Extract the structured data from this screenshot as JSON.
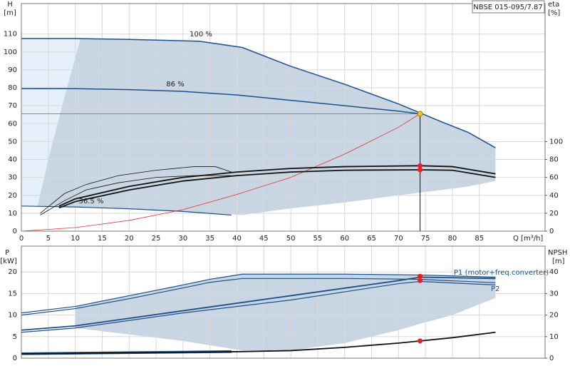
{
  "chart_data": [
    {
      "type": "line",
      "title": "NBSE 015-095/7.87",
      "y_label": [
        "H",
        "[m]"
      ],
      "y2_label": [
        "eta",
        "[%]"
      ],
      "x_label": "Q [m³/h]",
      "xlim": [
        0,
        97.2
      ],
      "xticks": [
        0,
        5,
        10,
        15,
        20,
        25,
        30,
        35,
        40,
        45,
        50,
        55,
        60,
        65,
        70,
        75,
        80,
        85
      ],
      "ylim": [
        0,
        127
      ],
      "yticks": [
        0,
        10,
        20,
        30,
        40,
        50,
        60,
        70,
        80,
        90,
        100,
        110
      ],
      "y2lim": [
        0,
        254
      ],
      "y2ticks": [
        0,
        20,
        40,
        60,
        80,
        100
      ],
      "grid": true,
      "areas": [
        {
          "color": "#e6f0fa",
          "x": [
            0,
            3,
            5,
            8,
            11
          ],
          "upper": [
            107.5,
            107.5,
            107.5,
            107.5,
            107.5
          ],
          "lower": [
            14,
            14,
            40,
            75,
            107.5
          ]
        },
        {
          "color": "#c8d5e2",
          "x": [
            3,
            5,
            8,
            11,
            20,
            33,
            41,
            50,
            60,
            70,
            74,
            78,
            83,
            88
          ],
          "upper": [
            14,
            40,
            75,
            107.5,
            107,
            106,
            102.5,
            92,
            82,
            71,
            66,
            61,
            55,
            46.5
          ],
          "lower": [
            13.8,
            13.7,
            13.5,
            13.4,
            12.5,
            10.5,
            9,
            12.7,
            16,
            20,
            21.5,
            23,
            25,
            28
          ]
        }
      ],
      "series": [
        {
          "name": "100 %",
          "color": "#1d4f8a",
          "width": 1.5,
          "x": [
            0,
            10,
            20,
            33,
            41,
            50,
            60,
            70,
            74,
            78,
            83,
            88
          ],
          "values": [
            107.5,
            107.5,
            107,
            106,
            102.5,
            92,
            82,
            71,
            66,
            61,
            55,
            46.5
          ]
        },
        {
          "name": "86 %",
          "color": "#1d4f8a",
          "width": 1.5,
          "x": [
            0,
            10,
            20,
            30,
            40,
            50,
            60,
            70,
            74
          ],
          "values": [
            79.5,
            79.5,
            79,
            78,
            76,
            73,
            70,
            67,
            65.5
          ]
        },
        {
          "name": "36.5 %",
          "color": "#1d4f8a",
          "width": 1.2,
          "x": [
            0,
            10,
            20,
            30,
            39
          ],
          "values": [
            14,
            13.5,
            12.5,
            11,
            9
          ]
        },
        {
          "color": "#e83030",
          "width": 0.8,
          "x": [
            0,
            10,
            20,
            30,
            40,
            50,
            60,
            70,
            74
          ],
          "values": [
            0,
            2,
            6,
            12,
            20.5,
            30,
            43,
            58,
            65.5
          ]
        },
        {
          "color": "#111111",
          "width": 1.8,
          "axis": "y2",
          "x": [
            7,
            10,
            20,
            30,
            40,
            50,
            60,
            74,
            80,
            88
          ],
          "values": [
            28,
            36,
            50,
            60,
            66,
            70,
            72,
            73,
            72,
            64
          ]
        },
        {
          "color": "#111111",
          "width": 1.8,
          "axis": "y2",
          "x": [
            7,
            10,
            20,
            30,
            40,
            50,
            60,
            74,
            80,
            88
          ],
          "values": [
            26,
            33,
            46,
            56,
            62,
            66,
            68,
            68.5,
            68,
            60
          ]
        },
        {
          "color": "#111111",
          "width": 0.8,
          "axis": "y2",
          "x": [
            3.5,
            8,
            12,
            18,
            25,
            32,
            36,
            39
          ],
          "values": [
            20,
            42,
            52,
            62,
            68,
            72,
            72,
            66
          ]
        },
        {
          "color": "#111111",
          "width": 0.8,
          "axis": "y2",
          "x": [
            3.5,
            8,
            12,
            18,
            25,
            32,
            36,
            39
          ],
          "values": [
            18,
            34,
            46,
            54,
            60,
            62,
            62,
            62
          ]
        }
      ],
      "duty_point": {
        "x": 74,
        "y": 65.5
      },
      "points": [
        {
          "x": 74,
          "y": 65.5,
          "color": "#f5c518"
        },
        {
          "x": 74,
          "y": 73,
          "axis": "y2",
          "color": "#e82020"
        },
        {
          "x": 74,
          "y": 68.5,
          "axis": "y2",
          "color": "#e82020"
        }
      ]
    },
    {
      "type": "line",
      "y_label": [
        "P",
        "[kW]"
      ],
      "y2_label": [
        "NPSH",
        "[m]"
      ],
      "xlim": [
        0,
        97.2
      ],
      "xticks": [
        0,
        5,
        10,
        15,
        20,
        25,
        30,
        35,
        40,
        45,
        50,
        55,
        60,
        65,
        70,
        75,
        80,
        85
      ],
      "ylim": [
        0,
        26
      ],
      "yticks": [
        0,
        5,
        10,
        15,
        20
      ],
      "y2lim": [
        0,
        52
      ],
      "y2ticks": [
        0,
        10,
        20,
        30,
        40
      ],
      "grid": true,
      "areas": [
        {
          "color": "#c8d5e2",
          "x": [
            10,
            20,
            30,
            41,
            50,
            60,
            70,
            74,
            80,
            88
          ],
          "upper": [
            12,
            14.5,
            17,
            19.5,
            19.5,
            19.5,
            19.5,
            19.4,
            19.2,
            18.8
          ],
          "lower": [
            7,
            5.5,
            4,
            1.8,
            1.8,
            3.5,
            6.5,
            8,
            10,
            14
          ]
        }
      ],
      "series": [
        {
          "name": "P1 (motor+freq.converter)",
          "color": "#1d4f8a",
          "width": 1.2,
          "x": [
            0,
            10,
            20,
            30,
            35,
            41,
            60,
            74,
            88
          ],
          "values": [
            10.5,
            12,
            14.5,
            17,
            18.3,
            19.5,
            19.5,
            19.3,
            18.8
          ]
        },
        {
          "name": "P2",
          "color": "#1d4f8a",
          "width": 1.2,
          "x": [
            0,
            10,
            20,
            30,
            35,
            41,
            60,
            74,
            88
          ],
          "values": [
            10,
            11.5,
            13.8,
            16.3,
            17.6,
            18.5,
            18.5,
            18.3,
            17.5
          ]
        },
        {
          "color": "#1d4f8a",
          "width": 1.8,
          "x": [
            0,
            10,
            30,
            50,
            70,
            74,
            88
          ],
          "values": [
            6.5,
            7.5,
            11,
            14.5,
            18,
            18.8,
            18.5
          ]
        },
        {
          "color": "#1d4f8a",
          "width": 1.2,
          "x": [
            0,
            10,
            30,
            50,
            70,
            74,
            88
          ],
          "values": [
            6,
            7,
            10.5,
            13.5,
            17.3,
            17.8,
            17
          ]
        },
        {
          "color": "#1d4f8a",
          "width": 1.5,
          "x": [
            0,
            39
          ],
          "values": [
            1.2,
            1.7
          ]
        },
        {
          "color": "#1d4f8a",
          "width": 1,
          "x": [
            0,
            39
          ],
          "values": [
            0.8,
            1.3
          ]
        },
        {
          "color": "#111111",
          "width": 1.8,
          "axis": "y2",
          "x": [
            0,
            20,
            40,
            50,
            60,
            70,
            74,
            80,
            88
          ],
          "values": [
            2,
            2.5,
            3,
            3.5,
            5,
            7,
            8,
            9.5,
            12
          ]
        }
      ],
      "points": [
        {
          "x": 74,
          "y": 19,
          "color": "#e82020"
        },
        {
          "x": 74,
          "y": 18,
          "color": "#e82020"
        },
        {
          "x": 74,
          "y": 8,
          "axis": "y2",
          "color": "#e82020"
        }
      ]
    }
  ]
}
